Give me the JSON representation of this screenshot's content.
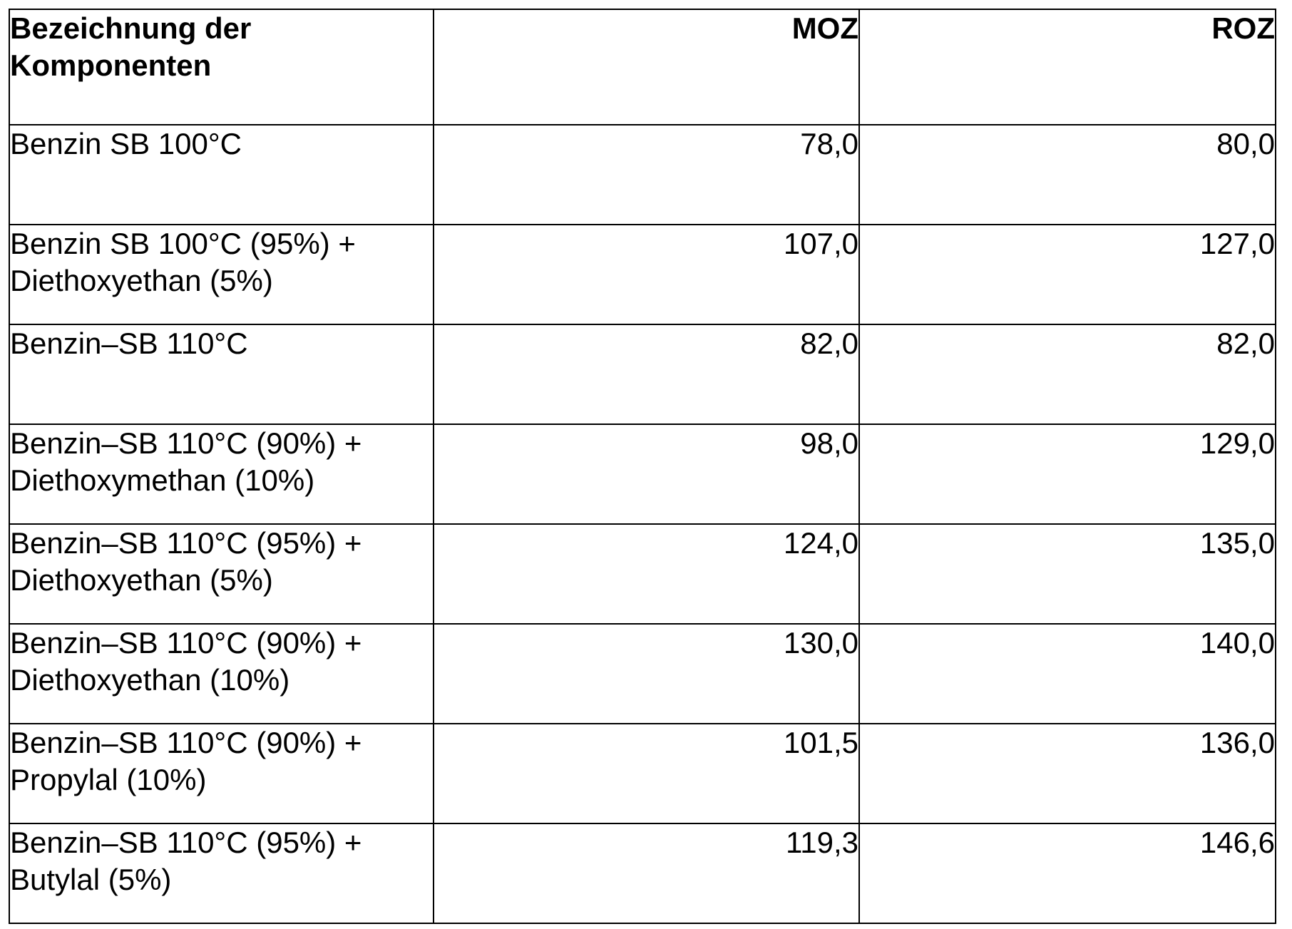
{
  "table": {
    "headers": {
      "name_line1": "Bezeichnung der",
      "name_line2": "Komponenten",
      "moz": "MOZ",
      "roz": "ROZ"
    },
    "rows": [
      {
        "name_line1": "Benzin SB 100°C",
        "name_line2": "",
        "moz": "78,0",
        "roz": "80,0"
      },
      {
        "name_line1": "Benzin SB 100°C (95%) +",
        "name_line2": "Diethoxyethan (5%)",
        "moz": "107,0",
        "roz": "127,0"
      },
      {
        "name_line1": "Benzin–SB 110°C",
        "name_line2": "",
        "moz": "82,0",
        "roz": "82,0"
      },
      {
        "name_line1": "Benzin–SB 110°C (90%) +",
        "name_line2": "Diethoxymethan (10%)",
        "moz": "98,0",
        "roz": "129,0"
      },
      {
        "name_line1": "Benzin–SB 110°C (95%) +",
        "name_line2": "Diethoxyethan (5%)",
        "moz": "124,0",
        "roz": "135,0"
      },
      {
        "name_line1": "Benzin–SB 110°C (90%) +",
        "name_line2": "Diethoxyethan (10%)",
        "moz": "130,0",
        "roz": "140,0"
      },
      {
        "name_line1": "Benzin–SB 110°C (90%) +",
        "name_line2": "Propylal (10%)",
        "moz": "101,5",
        "roz": "136,0"
      },
      {
        "name_line1": "Benzin–SB 110°C (95%) +",
        "name_line2": "Butylal (5%)",
        "moz": "119,3",
        "roz": "146,6"
      }
    ]
  }
}
